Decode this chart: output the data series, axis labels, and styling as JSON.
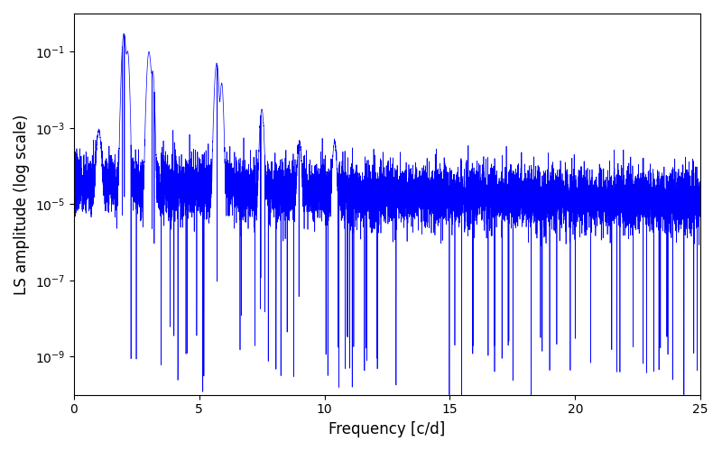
{
  "title": "",
  "xlabel": "Frequency [c/d]",
  "ylabel": "LS amplitude (log scale)",
  "xlim": [
    0,
    25
  ],
  "ylim": [
    1e-10,
    1
  ],
  "line_color": "#0000ff",
  "line_width": 0.5,
  "freq_max": 25.0,
  "n_points": 10000,
  "seed": 7,
  "background_color": "#ffffff",
  "figsize": [
    8.0,
    5.0
  ],
  "dpi": 100
}
